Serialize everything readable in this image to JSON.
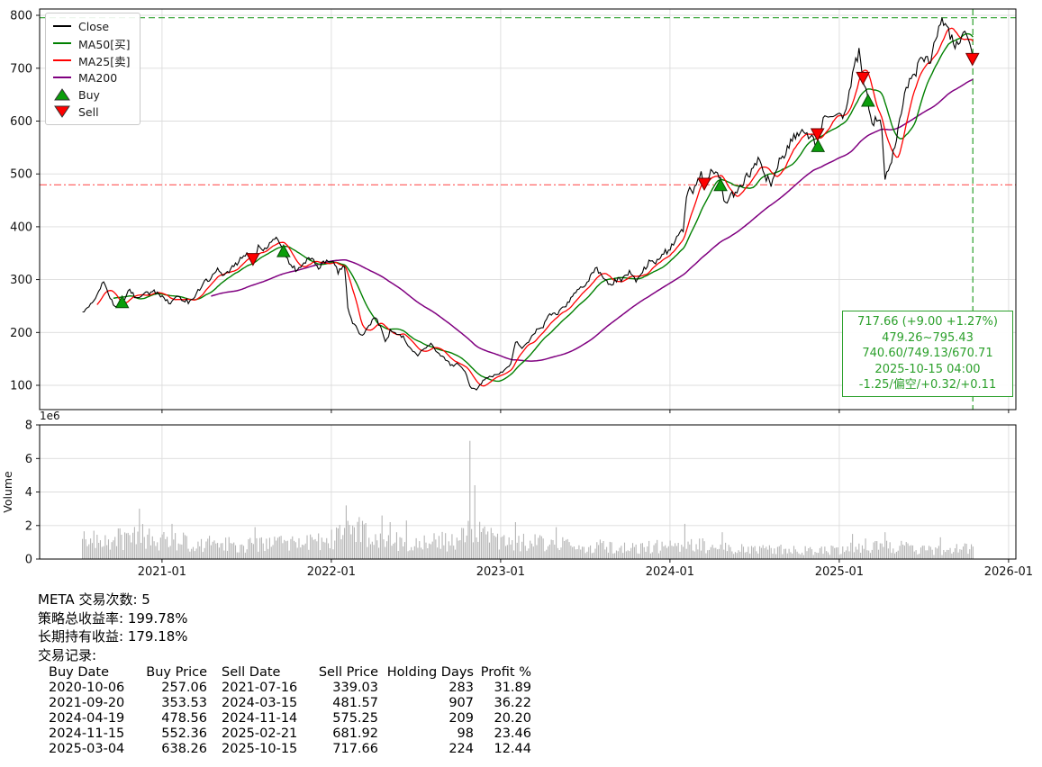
{
  "stats": {
    "trade_count": "META 交易次数: 5",
    "strategy_return": "策略总收益率: 199.78%",
    "buy_hold_return": "长期持有收益: 179.18%",
    "records_label": "交易记录:"
  },
  "trades": {
    "headers": [
      "Buy Date",
      "Buy Price",
      "Sell Date",
      "Sell Price",
      "Holding Days",
      "Profit %"
    ],
    "rows": [
      [
        "2020-10-06",
        "257.06",
        "2021-07-16",
        "339.03",
        "283",
        "31.89"
      ],
      [
        "2021-09-20",
        "353.53",
        "2024-03-15",
        "481.57",
        "907",
        "36.22"
      ],
      [
        "2024-04-19",
        "478.56",
        "2024-11-14",
        "575.25",
        "209",
        "20.20"
      ],
      [
        "2024-11-15",
        "552.36",
        "2025-02-21",
        "681.92",
        "98",
        "23.46"
      ],
      [
        "2025-03-04",
        "638.26",
        "2025-10-15",
        "717.66",
        "224",
        "12.44"
      ]
    ]
  },
  "chart_data": {
    "type": "line",
    "symbol": "META",
    "x_axis": {
      "range": [
        2020.277,
        2026.043
      ],
      "ticks": [
        2021,
        2022,
        2023,
        2024,
        2025,
        2026
      ],
      "tick_labels": [
        "2021-01",
        "2022-01",
        "2023-01",
        "2024-01",
        "2025-01",
        "2026-01"
      ]
    },
    "price_panel": {
      "ylim": [
        54,
        812
      ],
      "yticks": [
        100,
        200,
        300,
        400,
        500,
        600,
        700,
        800
      ],
      "series_start": 2020.53,
      "series_end": 2025.79,
      "close_color": "#000000",
      "ma25_color": "#ff0000",
      "ma50_color": "#008000",
      "ma200_color": "#800080",
      "close_keyframes": [
        [
          2020.53,
          238
        ],
        [
          2020.57,
          252
        ],
        [
          2020.61,
          268
        ],
        [
          2020.66,
          298
        ],
        [
          2020.69,
          266
        ],
        [
          2020.72,
          249
        ],
        [
          2020.77,
          259
        ],
        [
          2020.81,
          281
        ],
        [
          2020.85,
          263
        ],
        [
          2020.89,
          273
        ],
        [
          2020.95,
          277
        ],
        [
          2021.0,
          268
        ],
        [
          2021.05,
          256
        ],
        [
          2021.09,
          267
        ],
        [
          2021.13,
          261
        ],
        [
          2021.17,
          257
        ],
        [
          2021.21,
          279
        ],
        [
          2021.25,
          296
        ],
        [
          2021.29,
          303
        ],
        [
          2021.33,
          318
        ],
        [
          2021.37,
          307
        ],
        [
          2021.41,
          321
        ],
        [
          2021.45,
          333
        ],
        [
          2021.49,
          348
        ],
        [
          2021.54,
          341
        ],
        [
          2021.57,
          361
        ],
        [
          2021.61,
          356
        ],
        [
          2021.65,
          372
        ],
        [
          2021.68,
          379
        ],
        [
          2021.72,
          354
        ],
        [
          2021.76,
          327
        ],
        [
          2021.8,
          316
        ],
        [
          2021.84,
          333
        ],
        [
          2021.88,
          343
        ],
        [
          2021.92,
          323
        ],
        [
          2021.96,
          335
        ],
        [
          2022.0,
          337
        ],
        [
          2022.04,
          315
        ],
        [
          2022.08,
          323
        ],
        [
          2022.1,
          237
        ],
        [
          2022.13,
          217
        ],
        [
          2022.18,
          192
        ],
        [
          2022.22,
          213
        ],
        [
          2022.26,
          229
        ],
        [
          2022.3,
          204
        ],
        [
          2022.32,
          178
        ],
        [
          2022.35,
          205
        ],
        [
          2022.39,
          196
        ],
        [
          2022.43,
          190
        ],
        [
          2022.47,
          167
        ],
        [
          2022.51,
          157
        ],
        [
          2022.55,
          171
        ],
        [
          2022.59,
          179
        ],
        [
          2022.63,
          161
        ],
        [
          2022.67,
          151
        ],
        [
          2022.71,
          137
        ],
        [
          2022.75,
          141
        ],
        [
          2022.79,
          127
        ],
        [
          2022.82,
          97
        ],
        [
          2022.86,
          91
        ],
        [
          2022.9,
          111
        ],
        [
          2022.94,
          116
        ],
        [
          2022.98,
          120
        ],
        [
          2023.02,
          127
        ],
        [
          2023.06,
          141
        ],
        [
          2023.09,
          185
        ],
        [
          2023.13,
          171
        ],
        [
          2023.17,
          186
        ],
        [
          2023.21,
          203
        ],
        [
          2023.25,
          211
        ],
        [
          2023.29,
          237
        ],
        [
          2023.33,
          233
        ],
        [
          2023.38,
          249
        ],
        [
          2023.42,
          267
        ],
        [
          2023.46,
          283
        ],
        [
          2023.5,
          289
        ],
        [
          2023.56,
          321
        ],
        [
          2023.6,
          309
        ],
        [
          2023.64,
          287
        ],
        [
          2023.68,
          299
        ],
        [
          2023.72,
          301
        ],
        [
          2023.76,
          315
        ],
        [
          2023.8,
          299
        ],
        [
          2023.84,
          317
        ],
        [
          2023.88,
          335
        ],
        [
          2023.92,
          331
        ],
        [
          2023.96,
          351
        ],
        [
          2024.0,
          355
        ],
        [
          2024.05,
          389
        ],
        [
          2024.08,
          394
        ],
        [
          2024.1,
          473
        ],
        [
          2024.14,
          467
        ],
        [
          2024.18,
          499
        ],
        [
          2024.21,
          483
        ],
        [
          2024.25,
          507
        ],
        [
          2024.3,
          487
        ],
        [
          2024.32,
          442
        ],
        [
          2024.36,
          461
        ],
        [
          2024.4,
          467
        ],
        [
          2024.44,
          489
        ],
        [
          2024.48,
          505
        ],
        [
          2024.52,
          531
        ],
        [
          2024.56,
          497
        ],
        [
          2024.6,
          481
        ],
        [
          2024.64,
          521
        ],
        [
          2024.68,
          535
        ],
        [
          2024.72,
          564
        ],
        [
          2024.76,
          581
        ],
        [
          2024.8,
          571
        ],
        [
          2024.84,
          577
        ],
        [
          2024.87,
          553
        ],
        [
          2024.92,
          617
        ],
        [
          2024.96,
          599
        ],
        [
          2025.0,
          607
        ],
        [
          2025.04,
          617
        ],
        [
          2025.08,
          688
        ],
        [
          2025.12,
          735
        ],
        [
          2025.14,
          682
        ],
        [
          2025.17,
          639
        ],
        [
          2025.19,
          592
        ],
        [
          2025.22,
          611
        ],
        [
          2025.25,
          587
        ],
        [
          2025.27,
          486
        ],
        [
          2025.31,
          531
        ],
        [
          2025.34,
          575
        ],
        [
          2025.38,
          644
        ],
        [
          2025.42,
          677
        ],
        [
          2025.46,
          699
        ],
        [
          2025.5,
          721
        ],
        [
          2025.54,
          711
        ],
        [
          2025.58,
          771
        ],
        [
          2025.62,
          791
        ],
        [
          2025.65,
          761
        ],
        [
          2025.69,
          744
        ],
        [
          2025.73,
          765
        ],
        [
          2025.77,
          741
        ],
        [
          2025.79,
          717.66
        ]
      ],
      "hlines": [
        {
          "y": 795.43,
          "color": "#2ca02c",
          "dash": "dashed"
        },
        {
          "y": 479.26,
          "color": "#ff5555",
          "dash": "dashdot"
        }
      ],
      "vlines": [
        {
          "x": 2025.789,
          "color": "#2ca02c",
          "dash": "dashed"
        }
      ]
    },
    "volume_panel": {
      "ylabel": "Volume",
      "offset_label": "1e6",
      "ylim": [
        0,
        8
      ],
      "yticks": [
        0,
        2,
        4,
        6,
        8
      ],
      "bar_color": "#b5b5b5",
      "volume_keyframes": [
        [
          2020.53,
          1.3
        ],
        [
          2020.7,
          1.1
        ],
        [
          2020.9,
          1.4
        ],
        [
          2021.0,
          1.15
        ],
        [
          2021.2,
          0.95
        ],
        [
          2021.5,
          0.8
        ],
        [
          2021.8,
          0.95
        ],
        [
          2022.0,
          1.2
        ],
        [
          2022.12,
          1.6
        ],
        [
          2022.3,
          1.2
        ],
        [
          2022.5,
          1.0
        ],
        [
          2022.75,
          1.1
        ],
        [
          2022.84,
          1.9
        ],
        [
          2023.0,
          1.0
        ],
        [
          2023.2,
          0.95
        ],
        [
          2023.5,
          0.8
        ],
        [
          2023.8,
          0.65
        ],
        [
          2024.1,
          0.9
        ],
        [
          2024.4,
          0.62
        ],
        [
          2024.7,
          0.55
        ],
        [
          2025.0,
          0.55
        ],
        [
          2025.15,
          0.8
        ],
        [
          2025.3,
          0.8
        ],
        [
          2025.55,
          0.5
        ],
        [
          2025.79,
          0.65
        ]
      ],
      "volume_spikes": [
        [
          2020.87,
          3.0
        ],
        [
          2021.06,
          2.1
        ],
        [
          2021.55,
          1.9
        ],
        [
          2022.09,
          3.2
        ],
        [
          2022.16,
          2.5
        ],
        [
          2022.3,
          2.6
        ],
        [
          2022.35,
          2.2
        ],
        [
          2022.44,
          2.3
        ],
        [
          2022.82,
          7.05
        ],
        [
          2022.85,
          4.4
        ],
        [
          2023.09,
          2.2
        ],
        [
          2023.33,
          1.9
        ],
        [
          2024.09,
          2.1
        ],
        [
          2024.31,
          1.6
        ],
        [
          2025.08,
          1.5
        ],
        [
          2025.27,
          1.6
        ],
        [
          2025.6,
          1.3
        ]
      ]
    },
    "buy_signals": [
      {
        "date": "2020-10-06",
        "price": 257.06
      },
      {
        "date": "2021-09-20",
        "price": 353.53
      },
      {
        "date": "2024-04-19",
        "price": 478.56
      },
      {
        "date": "2024-11-15",
        "price": 552.36
      },
      {
        "date": "2025-03-04",
        "price": 638.26
      }
    ],
    "sell_signals": [
      {
        "date": "2021-07-16",
        "price": 339.03
      },
      {
        "date": "2024-03-15",
        "price": 481.57
      },
      {
        "date": "2024-11-14",
        "price": 575.25
      },
      {
        "date": "2025-02-21",
        "price": 681.92
      },
      {
        "date": "2025-10-15",
        "price": 717.66
      }
    ],
    "annotation_box": {
      "color": "#2ca02c",
      "lines": [
        "717.66 (+9.00 +1.27%)",
        "479.26~795.43",
        "740.60/749.13/670.71",
        "2025-10-15 04:00",
        "-1.25/偏空/+0.32/+0.11"
      ]
    },
    "legend": {
      "items": [
        {
          "label": "Close",
          "swatch": "line",
          "color": "#000000"
        },
        {
          "label": "MA50[买]",
          "swatch": "line",
          "color": "#008000"
        },
        {
          "label": "MA25[卖]",
          "swatch": "line",
          "color": "#ff0000"
        },
        {
          "label": "MA200",
          "swatch": "line",
          "color": "#800080"
        },
        {
          "label": "Buy",
          "swatch": "triangle-up",
          "color": "#0b9e0b"
        },
        {
          "label": "Sell",
          "swatch": "triangle-down",
          "color": "#ff0000"
        }
      ]
    },
    "marker_style": {
      "buy_fill": "#0b9e0b",
      "buy_edge": "#064d06",
      "sell_fill": "#ff0000",
      "sell_edge": "#6b0000"
    }
  }
}
